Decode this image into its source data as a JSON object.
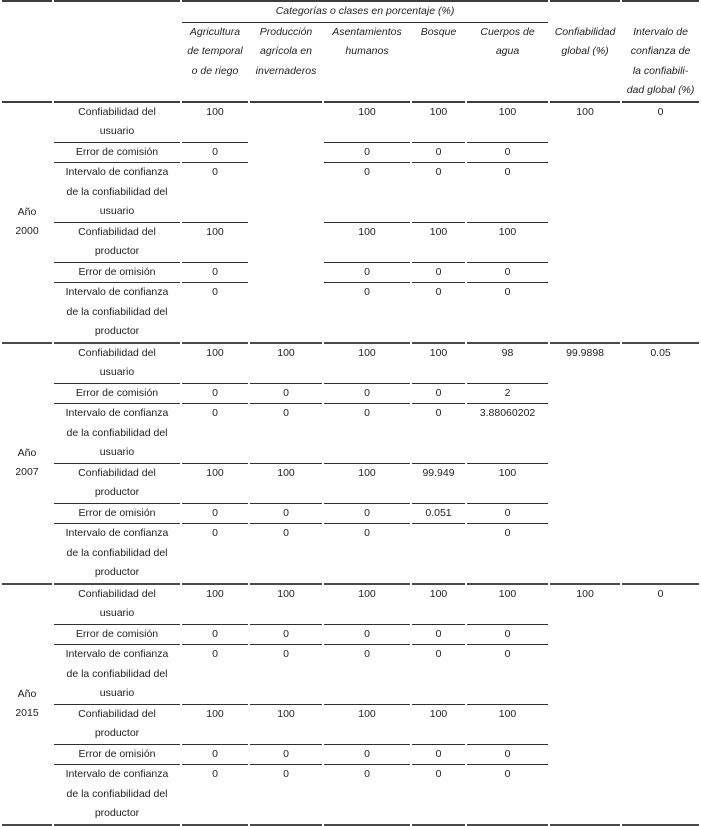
{
  "table": {
    "header": {
      "group_title": "Categorías o clases en porcentaje (%)",
      "columns": [
        "Agricultura\nde temporal\no de riego",
        "Producción\nagrícola en\ninvernaderos",
        "Asentamientos\nhumanos",
        "Bosque",
        "Cuerpos de\nagua",
        "Confiabilidad\nglobal (%)",
        "Intervalo de\nconfianza de\nla confiabili-\ndad global (%)"
      ]
    },
    "blocks": [
      {
        "year": "Año\n2000",
        "rows": [
          {
            "label": "Confiabilidad del\nusuario",
            "values": [
              "100",
              "",
              "100",
              "100",
              "100",
              "100",
              "0"
            ]
          },
          {
            "label": "Error de comisión",
            "values": [
              "0",
              "",
              "0",
              "0",
              "0",
              "",
              ""
            ]
          },
          {
            "label": "Intervalo de confianza\nde la confiabilidad del\nusuario",
            "values": [
              "0",
              "",
              "0",
              "0",
              "0",
              "",
              ""
            ]
          },
          {
            "label": "Confiabilidad del\nproductor",
            "values": [
              "100",
              "",
              "100",
              "100",
              "100",
              "",
              ""
            ]
          },
          {
            "label": "Error de omisión",
            "values": [
              "0",
              "",
              "0",
              "0",
              "0",
              "",
              ""
            ]
          },
          {
            "label": "Intervalo de confianza\nde la confiabilidad del\nproductor",
            "values": [
              "0",
              "",
              "0",
              "0",
              "0",
              "",
              ""
            ]
          }
        ]
      },
      {
        "year": "Año\n2007",
        "rows": [
          {
            "label": "Confiabilidad del\nusuario",
            "values": [
              "100",
              "100",
              "100",
              "100",
              "98",
              "99.9898",
              "0.05"
            ]
          },
          {
            "label": "Error de comisión",
            "values": [
              "0",
              "0",
              "0",
              "0",
              "2",
              "",
              ""
            ]
          },
          {
            "label": "Intervalo de confianza\nde la confiabilidad del\nusuario",
            "values": [
              "0",
              "0",
              "0",
              "0",
              "3.88060202",
              "",
              ""
            ]
          },
          {
            "label": "Confiabilidad del\nproductor",
            "values": [
              "100",
              "100",
              "100",
              "99.949",
              "100",
              "",
              ""
            ]
          },
          {
            "label": "Error de omisión",
            "values": [
              "0",
              "0",
              "0",
              "0.051",
              "0",
              "",
              ""
            ]
          },
          {
            "label": "Intervalo de confianza\nde la confiabilidad del\nproductor",
            "values": [
              "0",
              "0",
              "0",
              "",
              "0",
              "",
              ""
            ]
          }
        ]
      },
      {
        "year": "Año\n2015",
        "rows": [
          {
            "label": "Confiabilidad del\nusuario",
            "values": [
              "100",
              "100",
              "100",
              "100",
              "100",
              "100",
              "0"
            ]
          },
          {
            "label": "Error de comisión",
            "values": [
              "0",
              "0",
              "0",
              "0",
              "0",
              "",
              ""
            ]
          },
          {
            "label": "Intervalo de confianza\nde la confiabilidad del\nusuario",
            "values": [
              "0",
              "0",
              "0",
              "0",
              "0",
              "",
              ""
            ]
          },
          {
            "label": "Confiabilidad del\nproductor",
            "values": [
              "100",
              "100",
              "100",
              "100",
              "100",
              "",
              ""
            ]
          },
          {
            "label": "Error de omisión",
            "values": [
              "0",
              "0",
              "0",
              "0",
              "0",
              "",
              ""
            ]
          },
          {
            "label": "Intervalo de confianza\nde la confiabilidad del\nproductor",
            "values": [
              "0",
              "0",
              "0",
              "0",
              "0",
              "",
              ""
            ]
          }
        ]
      }
    ]
  }
}
